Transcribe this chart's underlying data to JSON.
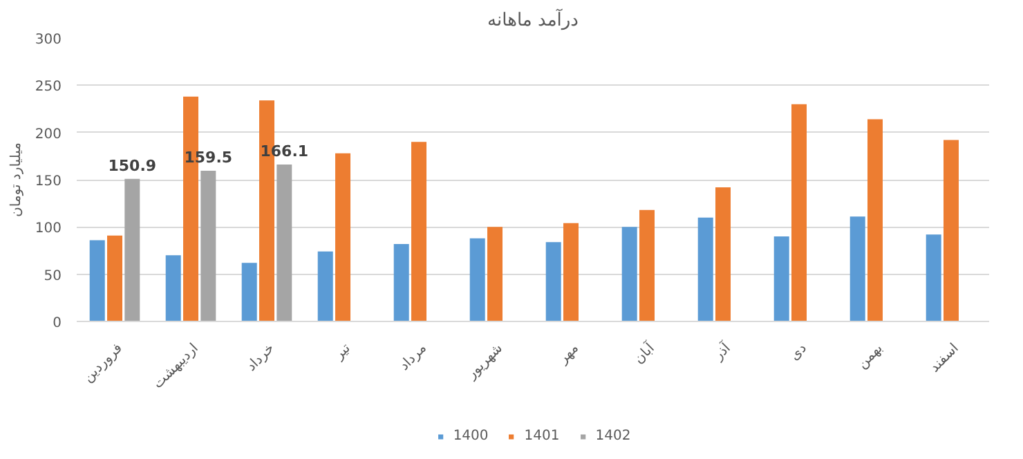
{
  "chart_data": {
    "type": "bar",
    "title": "درآمد ماهانه",
    "ylabel": "میلیارد تومان",
    "categories": [
      "فروردین",
      "اردیبهشت",
      "خرداد",
      "تیر",
      "مرداد",
      "شهریور",
      "مهر",
      "آبان",
      "آذر",
      "دی",
      "بهمن",
      "اسفند"
    ],
    "series": [
      {
        "name": "1400",
        "color": "#5b9bd5",
        "values": [
          86,
          70,
          62,
          74,
          82,
          88,
          84,
          100,
          110,
          90,
          111,
          92
        ]
      },
      {
        "name": "1401",
        "color": "#ed7d31",
        "values": [
          91,
          238,
          234,
          178,
          190,
          100,
          104,
          118,
          142,
          230,
          214,
          192
        ]
      },
      {
        "name": "1402",
        "color": "#a5a5a5",
        "values": [
          150.9,
          159.5,
          166.1,
          null,
          null,
          null,
          null,
          null,
          null,
          null,
          null,
          null
        ],
        "value_labels": [
          "150.9",
          "159.5",
          "166.1",
          null,
          null,
          null,
          null,
          null,
          null,
          null,
          null,
          null
        ]
      }
    ],
    "ylim": [
      0,
      300
    ],
    "yticks": [
      0,
      50,
      100,
      150,
      200,
      250,
      300
    ],
    "grid": "y",
    "legend": "bottom"
  }
}
